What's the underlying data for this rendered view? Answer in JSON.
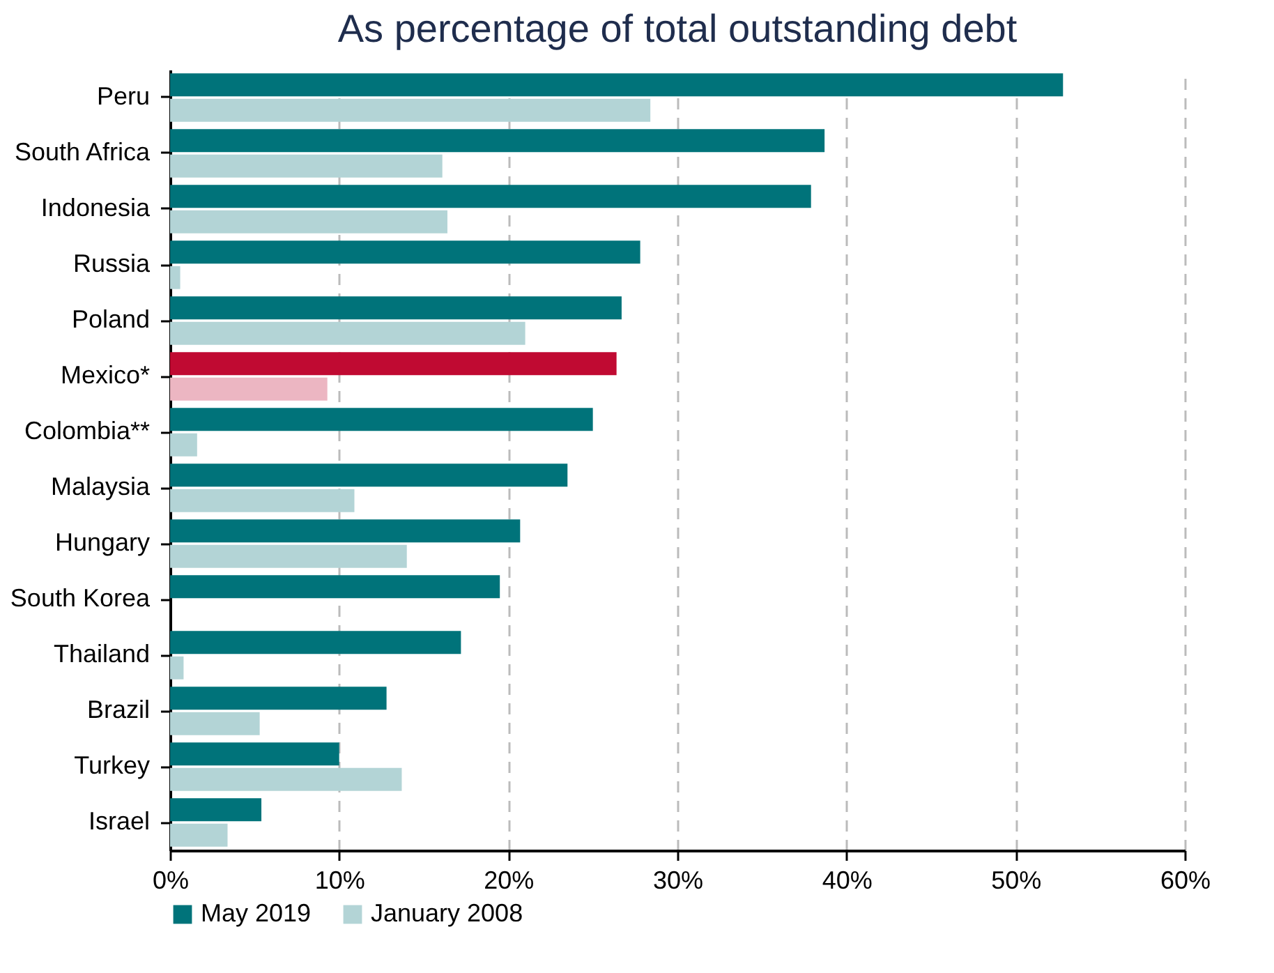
{
  "chart_data": {
    "type": "bar",
    "orientation": "horizontal",
    "title": "As percentage of total outstanding debt",
    "categories": [
      "Peru",
      "South Africa",
      "Indonesia",
      "Russia",
      "Poland",
      "Mexico*",
      "Colombia**",
      "Malaysia",
      "Hungary",
      "South Korea",
      "Thailand",
      "Brazil",
      "Turkey",
      "Israel"
    ],
    "series": [
      {
        "name": "May 2019",
        "color": "#00737a",
        "colors": [
          "#00737a",
          "#00737a",
          "#00737a",
          "#00737a",
          "#00737a",
          "#c00a32",
          "#00737a",
          "#00737a",
          "#00737a",
          "#00737a",
          "#00737a",
          "#00737a",
          "#00737a",
          "#00737a"
        ],
        "values": [
          52.8,
          38.7,
          37.9,
          27.8,
          26.7,
          26.4,
          25.0,
          23.5,
          20.7,
          19.5,
          17.2,
          12.8,
          10.0,
          5.4
        ]
      },
      {
        "name": "January 2008",
        "color": "#b3d4d6",
        "colors": [
          "#b3d4d6",
          "#b3d4d6",
          "#b3d4d6",
          "#b3d4d6",
          "#b3d4d6",
          "#ecb6c2",
          "#b3d4d6",
          "#b3d4d6",
          "#b3d4d6",
          "#b3d4d6",
          "#b3d4d6",
          "#b3d4d6",
          "#b3d4d6",
          "#b3d4d6"
        ],
        "values": [
          28.4,
          16.1,
          16.4,
          0.6,
          21.0,
          9.3,
          1.6,
          10.9,
          14.0,
          null,
          0.8,
          5.3,
          13.7,
          3.4
        ]
      }
    ],
    "xlim": [
      0,
      60
    ],
    "xticks": [
      {
        "value": 0,
        "label": "0%"
      },
      {
        "value": 10,
        "label": "10%"
      },
      {
        "value": 20,
        "label": "20%"
      },
      {
        "value": 30,
        "label": "30%"
      },
      {
        "value": 40,
        "label": "40%"
      },
      {
        "value": 50,
        "label": "50%"
      },
      {
        "value": 60,
        "label": "60%"
      }
    ],
    "grid": "x",
    "legend": "bottom"
  }
}
